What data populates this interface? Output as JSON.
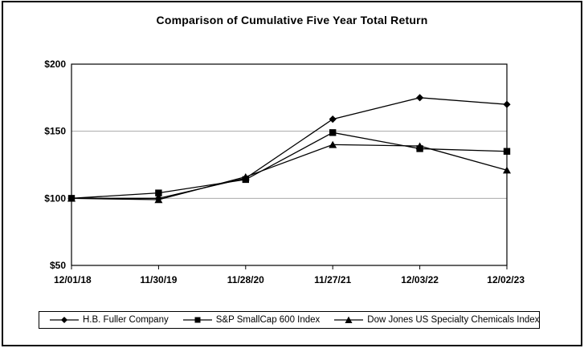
{
  "title": "Comparison of Cumulative Five Year Total Return",
  "chart_data": {
    "type": "line",
    "title": "Comparison of Cumulative Five Year Total Return",
    "categories": [
      "12/01/18",
      "11/30/19",
      "11/28/20",
      "11/27/21",
      "12/03/22",
      "12/02/23"
    ],
    "series": [
      {
        "name": "H.B. Fuller Company",
        "marker": "diamond",
        "values": [
          100,
          100,
          115,
          159,
          175,
          170
        ]
      },
      {
        "name": "S&P SmallCap 600 Index",
        "marker": "square",
        "values": [
          100,
          104,
          114,
          149,
          137,
          135
        ]
      },
      {
        "name": "Dow Jones US Specialty Chemicals Index",
        "marker": "triangle",
        "values": [
          100,
          99,
          116,
          140,
          139,
          121
        ]
      }
    ],
    "ylim": [
      50,
      200
    ],
    "yticks": [
      50,
      100,
      150,
      200
    ],
    "ytick_labels": [
      "$50",
      "$100",
      "$150",
      "$200"
    ],
    "grid": "horizontal",
    "legend_position": "bottom",
    "colors": {
      "line": "#000000",
      "marker": "#000000",
      "grid": "#aaaaaa",
      "axis": "#000000",
      "background": "#ffffff",
      "frame_border": "#000000"
    }
  }
}
